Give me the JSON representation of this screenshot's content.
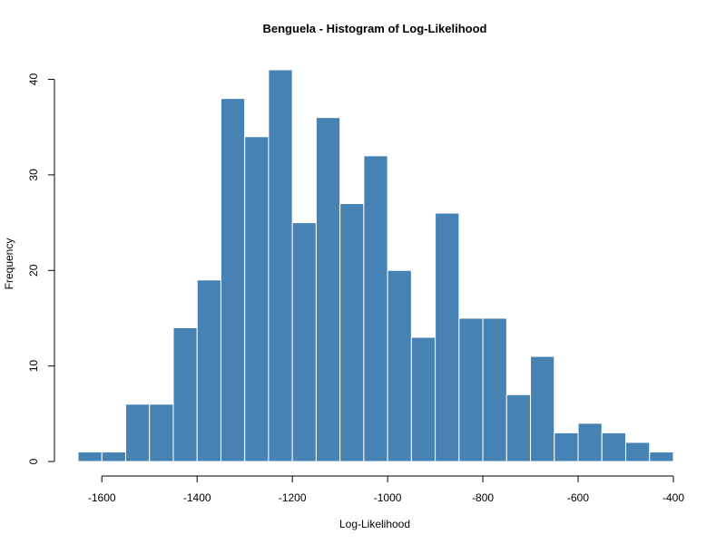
{
  "chart_data": {
    "type": "bar",
    "title": "Benguela - Histogram of Log-Likelihood",
    "xlabel": "Log-Likelihood",
    "ylabel": "Frequency",
    "bin_width": 50,
    "bins_start": [
      -1650,
      -1600,
      -1550,
      -1500,
      -1450,
      -1400,
      -1350,
      -1300,
      -1250,
      -1200,
      -1150,
      -1100,
      -1050,
      -1000,
      -950,
      -900,
      -850,
      -800,
      -750,
      -700,
      -650,
      -600,
      -550,
      -500,
      -450
    ],
    "values": [
      1,
      1,
      6,
      6,
      14,
      19,
      38,
      34,
      41,
      25,
      36,
      27,
      32,
      20,
      13,
      26,
      15,
      15,
      7,
      11,
      3,
      4,
      3,
      2,
      1
    ],
    "xlim": [
      -1650,
      -400
    ],
    "ylim": [
      0,
      41
    ],
    "x_ticks": [
      -1600,
      -1400,
      -1200,
      -1000,
      -800,
      -600,
      -400
    ],
    "x_tick_labels": [
      "-1600",
      "-1400",
      "-1200",
      "-1000",
      "-800",
      "-600",
      "-400"
    ],
    "y_ticks": [
      0,
      10,
      20,
      30,
      40
    ],
    "y_tick_labels": [
      "0",
      "10",
      "20",
      "30",
      "40"
    ],
    "bar_color": "#4682B4",
    "grid": false,
    "legend": "none"
  }
}
